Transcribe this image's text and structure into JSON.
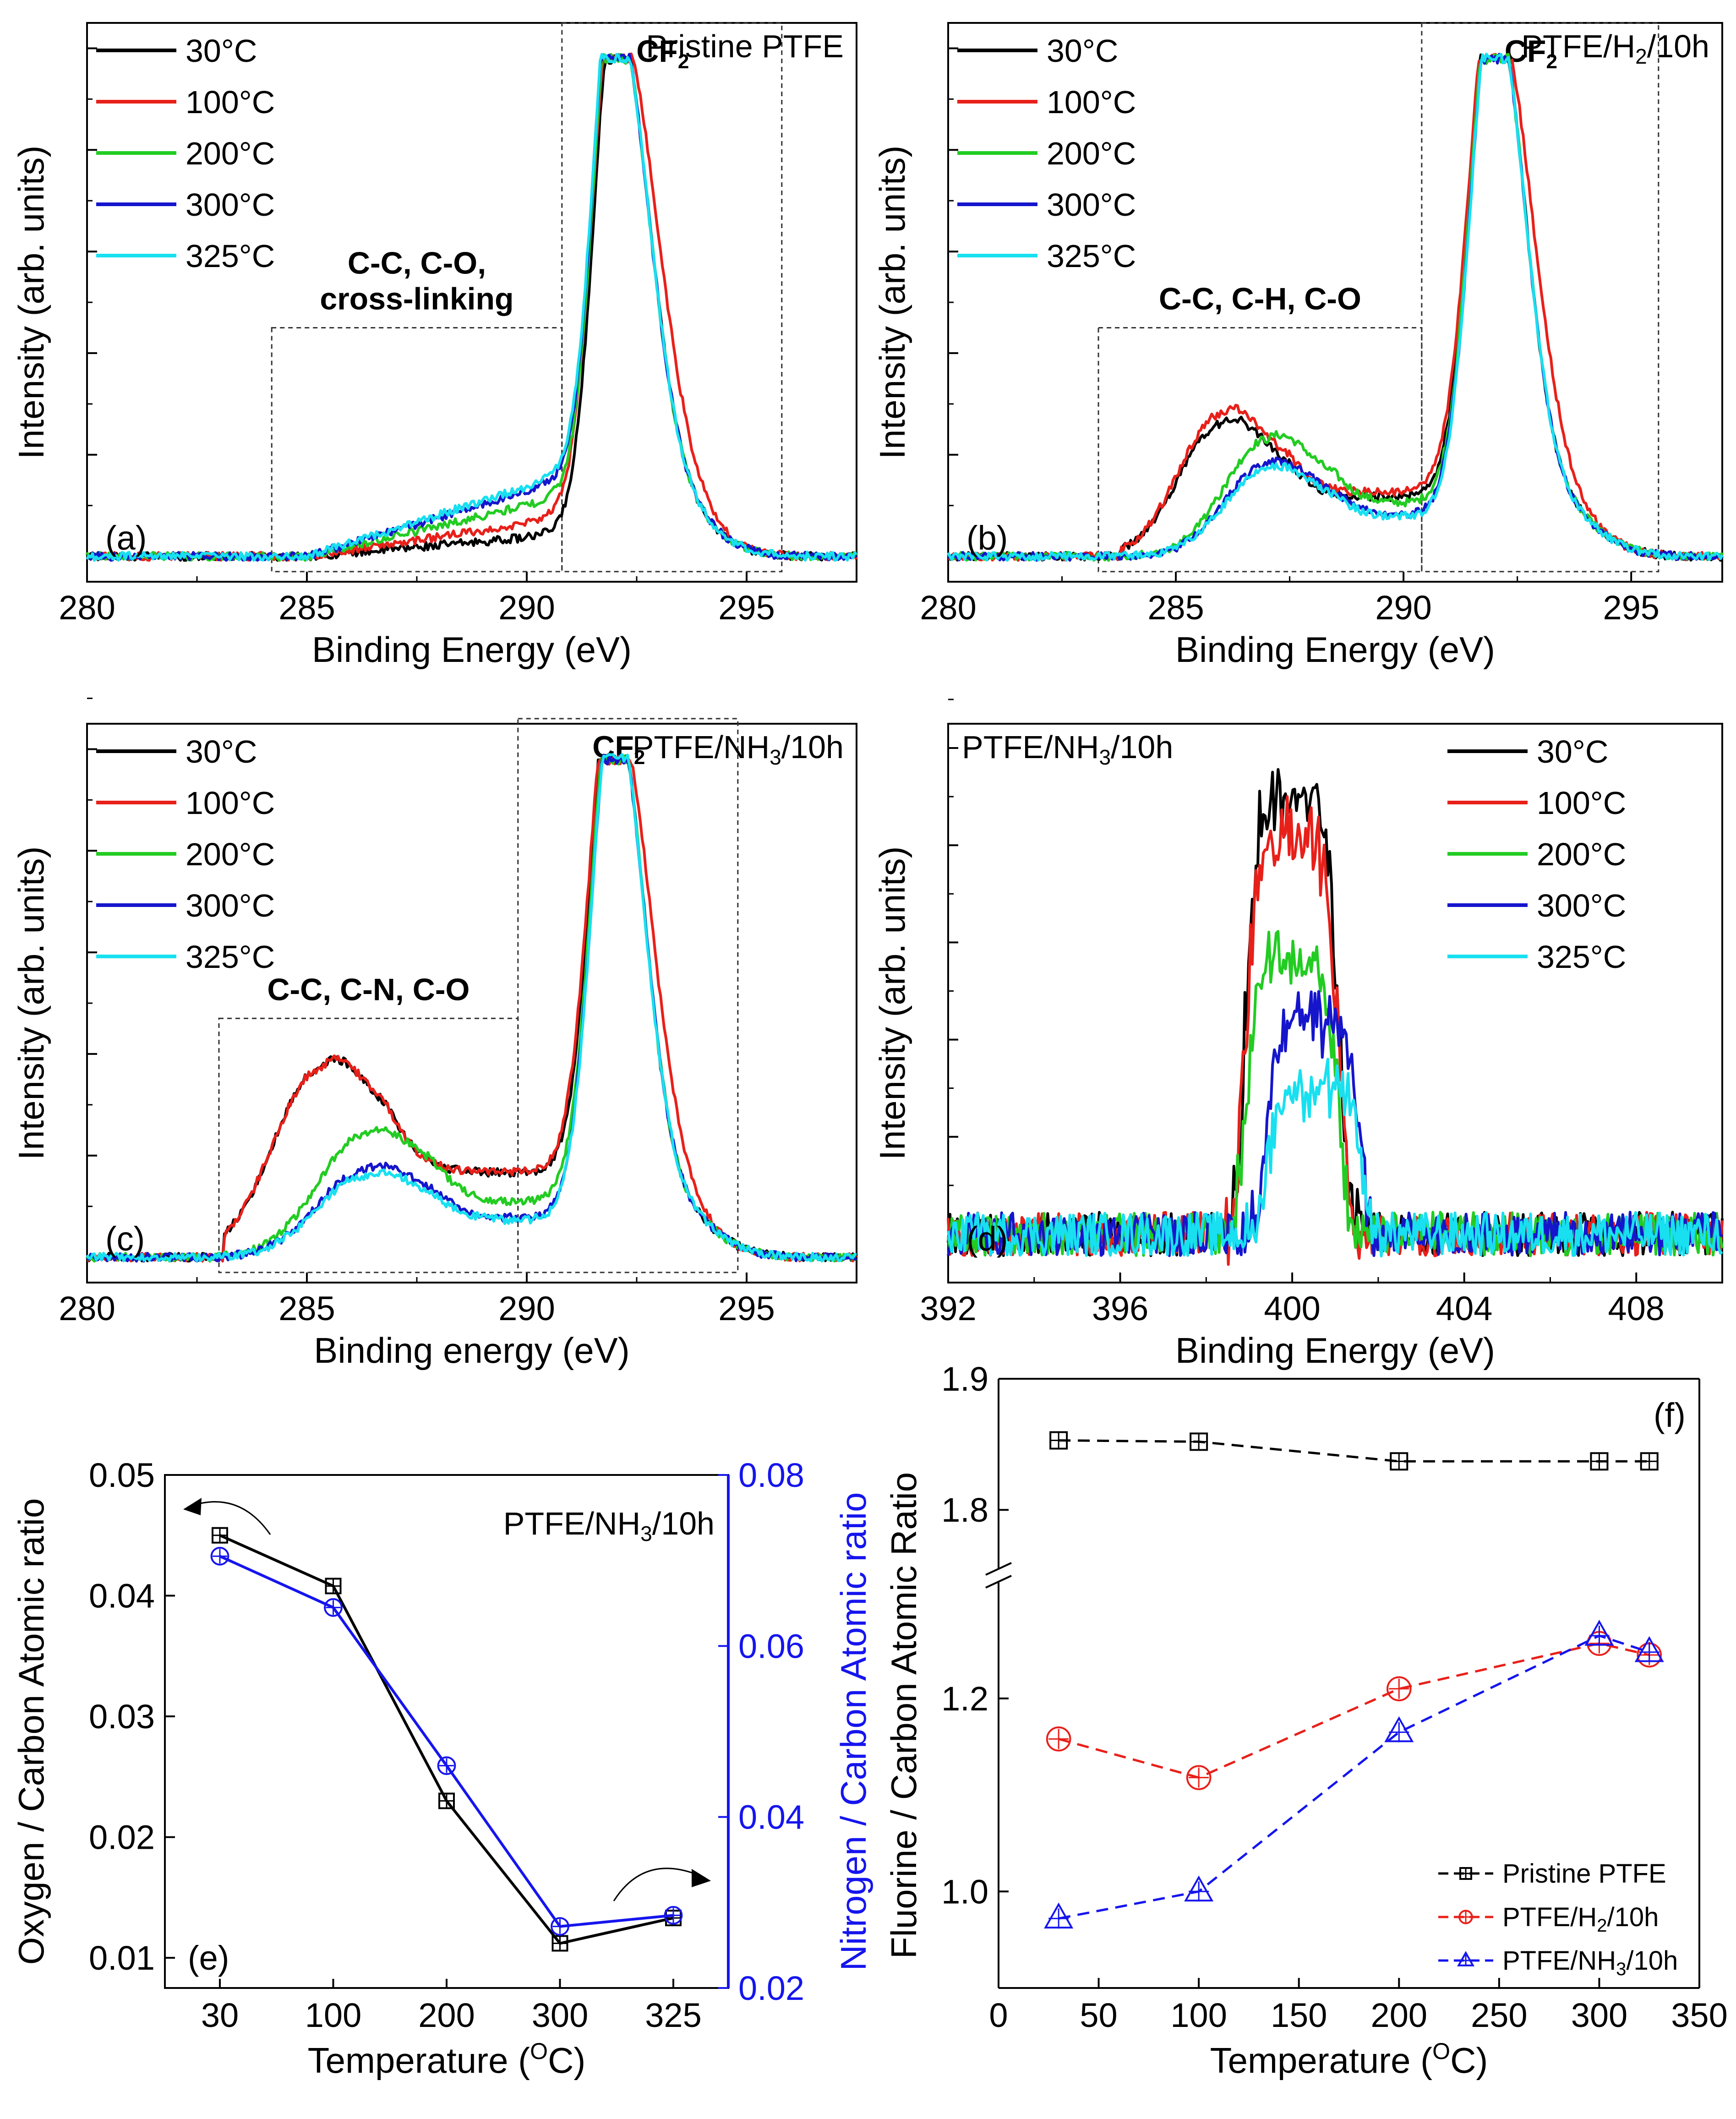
{
  "chart_data": [
    {
      "panel": "a",
      "type": "line",
      "title": "Pristine PTFE",
      "title_sub": "",
      "title_tail": "",
      "xlabel": "Binding Energy (eV)",
      "ylabel": "Intensity (arb. units)",
      "xlim": [
        280,
        297.5
      ],
      "ylim": [
        -0.05,
        1.05
      ],
      "xticks": [
        280,
        285,
        290,
        295
      ],
      "xtick_labels": [
        "280",
        "285",
        "290",
        "295"
      ],
      "panel_label": "(a)",
      "series": [
        {
          "name": "30°C",
          "color": "#000000"
        },
        {
          "name": "100°C",
          "color": "#e8201a"
        },
        {
          "name": "200°C",
          "color": "#22cc22"
        },
        {
          "name": "300°C",
          "color": "#1515cc"
        },
        {
          "name": "325°C",
          "color": "#18e0f0"
        }
      ],
      "peak_model": {
        "center": 292.0,
        "width_left": 0.55,
        "width_right": 0.85
      },
      "shoulder_model": {
        "center": 288.5,
        "height": [
          0.04,
          0.07,
          0.11,
          0.14,
          0.15
        ],
        "width": 2.0
      },
      "regions": [
        {
          "label": [
            "C-C, C-O,",
            "cross-linking"
          ],
          "x0": 284.2,
          "x1": 290.8,
          "y1": 0.45
        },
        {
          "label": [
            "CF",
            "2",
            ""
          ],
          "x0": 290.8,
          "x1": 295.8,
          "y1": 1.05
        }
      ]
    },
    {
      "panel": "b",
      "type": "line",
      "title": "PTFE/H",
      "title_sub": "2",
      "title_tail": "/10h",
      "xlabel": "Binding Energy (eV)",
      "ylabel": "Intensity (arb. units)",
      "xlim": [
        280,
        297
      ],
      "ylim": [
        -0.05,
        1.05
      ],
      "xticks": [
        280,
        285,
        290,
        295
      ],
      "xtick_labels": [
        "280",
        "285",
        "290",
        "295"
      ],
      "panel_label": "(b)",
      "series": [
        {
          "name": "30°C",
          "color": "#000000"
        },
        {
          "name": "100°C",
          "color": "#e8201a"
        },
        {
          "name": "200°C",
          "color": "#22cc22"
        },
        {
          "name": "300°C",
          "color": "#1515cc"
        },
        {
          "name": "325°C",
          "color": "#18e0f0"
        }
      ],
      "peak_model": {
        "center": 292.0,
        "width_left": 0.6,
        "width_right": 0.75
      },
      "shoulder_model": {
        "center": 286.0,
        "height": [
          0.26,
          0.28,
          0.23,
          0.18,
          0.17
        ],
        "width": 1.3
      },
      "regions": [
        {
          "label": [
            "C-C, C-H, C-O"
          ],
          "x0": 283.3,
          "x1": 290.4,
          "y1": 0.45
        },
        {
          "label": [
            "CF",
            "2",
            ""
          ],
          "x0": 290.4,
          "x1": 295.6,
          "y1": 1.05
        }
      ]
    },
    {
      "panel": "c",
      "type": "line",
      "title": "PTFE/NH",
      "title_sub": "3",
      "title_tail": "/10h",
      "xlabel": "Binding energy (eV)",
      "ylabel": "Intensity (arb. units)",
      "xlim": [
        280,
        297.5
      ],
      "ylim": [
        -0.05,
        1.05
      ],
      "xticks": [
        280,
        285,
        290,
        295
      ],
      "xtick_labels": [
        "280",
        "285",
        "290",
        "295"
      ],
      "panel_label": "(c)",
      "series": [
        {
          "name": "30°C",
          "color": "#000000"
        },
        {
          "name": "100°C",
          "color": "#e8201a"
        },
        {
          "name": "200°C",
          "color": "#22cc22"
        },
        {
          "name": "300°C",
          "color": "#1515cc"
        },
        {
          "name": "325°C",
          "color": "#18e0f0"
        }
      ],
      "peak_model": {
        "center": 292.0,
        "width_left": 0.6,
        "width_right": 0.75
      },
      "shoulder_model": {
        "center": 285.3,
        "height": [
          0.37,
          0.37,
          0.24,
          0.17,
          0.16
        ],
        "width": 1.5
      },
      "regions": [
        {
          "label": [
            "C-C, C-N, C-O"
          ],
          "x0": 283.0,
          "x1": 289.8,
          "y1": 0.47
        },
        {
          "label": [
            "CF",
            "2",
            ""
          ],
          "x0": 289.8,
          "x1": 294.8,
          "y1": 1.06
        }
      ]
    },
    {
      "panel": "d",
      "type": "line",
      "title": "PTFE/NH",
      "title_sub": "3",
      "title_tail": "/10h",
      "xlabel": "Binding Energy (eV)",
      "ylabel": "Intensity (arb. units)",
      "xlim": [
        392,
        410
      ],
      "ylim": [
        -0.1,
        1.05
      ],
      "xticks": [
        392,
        396,
        400,
        404,
        408
      ],
      "xtick_labels": [
        "392",
        "396",
        "400",
        "404",
        "408"
      ],
      "panel_label": "(d)",
      "series": [
        {
          "name": "30°C",
          "color": "#000000"
        },
        {
          "name": "100°C",
          "color": "#e8201a"
        },
        {
          "name": "200°C",
          "color": "#22cc22"
        },
        {
          "name": "300°C",
          "color": "#1515cc"
        },
        {
          "name": "325°C",
          "color": "#18e0f0"
        }
      ],
      "peak_model": {
        "center": 400.0,
        "heights": [
          0.9,
          0.82,
          0.55,
          0.44,
          0.3
        ],
        "width": 1.05
      }
    },
    {
      "panel": "e",
      "type": "line",
      "title": "PTFE/NH",
      "title_sub": "3",
      "title_tail": "/10h",
      "xlabel": "Temperature (",
      "xlabel_sup": "O",
      "xlabel_tail": "C)",
      "ylabel": "Oxygen / Carbon Atomic ratio",
      "y2label": "Nitrogen / Carbon Atomic ratio",
      "panel_label": "(e)",
      "categories": [
        "30",
        "100",
        "200",
        "300",
        "325"
      ],
      "ylim": [
        0.0075,
        0.05
      ],
      "y2lim": [
        0.02,
        0.08
      ],
      "yticks": [
        0.01,
        0.02,
        0.03,
        0.04,
        0.05
      ],
      "ytick_labels": [
        "0.01",
        "0.02",
        "0.03",
        "0.04",
        "0.05"
      ],
      "y2ticks": [
        0.02,
        0.04,
        0.06,
        0.08
      ],
      "y2tick_labels": [
        "0.02",
        "0.04",
        "0.06",
        "0.08"
      ],
      "series": [
        {
          "name": "Oxygen / Carbon",
          "axis": "left",
          "color": "#000000",
          "marker": "square-plus",
          "values": [
            0.045,
            0.0408,
            0.023,
            0.0112,
            0.0133
          ]
        },
        {
          "name": "Nitrogen / Carbon",
          "axis": "right",
          "color": "#1515ee",
          "marker": "circle-plus",
          "values": [
            0.0705,
            0.0645,
            0.046,
            0.0272,
            0.0285
          ]
        }
      ]
    },
    {
      "panel": "f",
      "type": "line",
      "xlabel": "Temperature (",
      "xlabel_sup": "O",
      "xlabel_tail": "C)",
      "ylabel": "Fluorine / Carbon Atomic Ratio",
      "panel_label": "(f)",
      "xlim": [
        0,
        350
      ],
      "xticks": [
        0,
        50,
        100,
        150,
        200,
        250,
        300,
        350
      ],
      "xtick_labels": [
        "0",
        "50",
        "100",
        "150",
        "200",
        "250",
        "300",
        "350"
      ],
      "yticks": [
        1.0,
        1.2,
        1.8,
        1.9
      ],
      "ytick_labels": [
        "1.0",
        "1.2",
        "1.8",
        "1.9"
      ],
      "ylim_lower": [
        0.9,
        1.32
      ],
      "ylim_upper": [
        1.755,
        1.9
      ],
      "x": [
        30,
        100,
        200,
        300,
        325
      ],
      "series": [
        {
          "name": "Pristine PTFE",
          "name_sub": "",
          "name_tail": "",
          "color": "#000000",
          "marker": "square-plus",
          "values": [
            1.853,
            1.852,
            1.837,
            1.837,
            1.837
          ]
        },
        {
          "name": "PTFE/H",
          "name_sub": "2",
          "name_tail": "/10h",
          "color": "#e8201a",
          "marker": "circle-plus",
          "values": [
            1.158,
            1.118,
            1.21,
            1.257,
            1.245
          ]
        },
        {
          "name": "PTFE/NH",
          "name_sub": "3",
          "name_tail": "/10h",
          "color": "#1515ee",
          "marker": "triangle-plus",
          "values": [
            0.972,
            1.0,
            1.165,
            1.265,
            1.248
          ]
        }
      ]
    }
  ]
}
